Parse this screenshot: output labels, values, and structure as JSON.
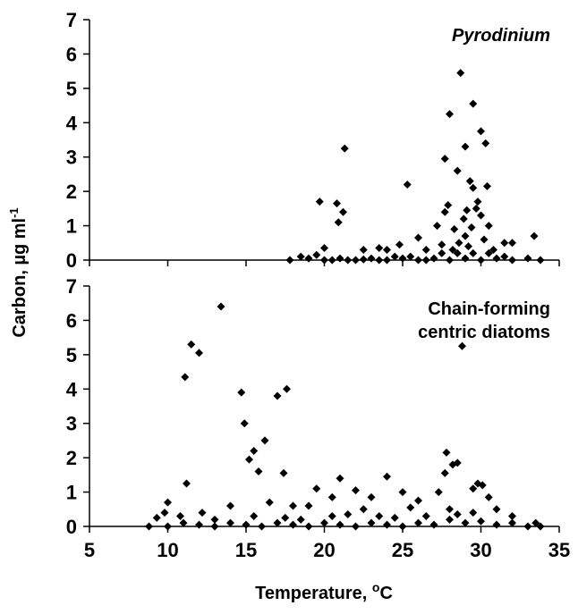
{
  "chart_data": [
    {
      "type": "scatter",
      "title": "Pyrodinium",
      "ylabel": "Carbon, µg ml",
      "ylabel_superscript": "-1",
      "color": "#000000",
      "xlim": [
        5,
        35
      ],
      "ylim": [
        0,
        7
      ],
      "yticks": [
        0,
        1,
        2,
        3,
        4,
        5,
        6,
        7
      ],
      "x": [
        28.7,
        29.5,
        28,
        30,
        30.3,
        29,
        21.3,
        27.7,
        28.5,
        29.3,
        25.3,
        30.4,
        29.5,
        19.7,
        20.8,
        21.2,
        20.9,
        27.9,
        27.7,
        29.8,
        29.7,
        30,
        29.1,
        28.9,
        27.2,
        29.4,
        30.5,
        28.3,
        26,
        33.4,
        31.5,
        32,
        24.8,
        23.5,
        22.5,
        20,
        29,
        30.2,
        28.6,
        27.5,
        26.5,
        24,
        19.5,
        18.5,
        17.8,
        19,
        20,
        21,
        22,
        23,
        24,
        25,
        26,
        27,
        28,
        29,
        30,
        31,
        32,
        33,
        33.8,
        20.5,
        21.5,
        22.5,
        23.5,
        24.5,
        25.5,
        26.5,
        27.5,
        28.5,
        29.5,
        30.5,
        31.5,
        28.2,
        29.2,
        30.8
      ],
      "values": [
        5.45,
        4.55,
        4.25,
        3.75,
        3.4,
        3.3,
        3.25,
        2.95,
        2.6,
        2.3,
        2.2,
        2.15,
        2.1,
        1.7,
        1.65,
        1.4,
        1.1,
        1.6,
        1.4,
        1.7,
        1.5,
        1.3,
        1.45,
        1.2,
        1.0,
        0.95,
        1.0,
        0.9,
        0.65,
        0.7,
        0.5,
        0.5,
        0.45,
        0.35,
        0.3,
        0.35,
        0.7,
        0.6,
        0.5,
        0.45,
        0.3,
        0.3,
        0.15,
        0.1,
        0,
        0.05,
        0,
        0.05,
        0,
        0.05,
        0,
        0.05,
        0,
        0.05,
        0,
        0.05,
        0,
        0.05,
        0,
        0.05,
        0,
        0,
        0,
        0.02,
        0,
        0.1,
        0.1,
        0,
        0.2,
        0.2,
        0.2,
        0.2,
        0.1,
        0.3,
        0.4,
        0.3
      ]
    },
    {
      "type": "scatter",
      "title": [
        "Chain-forming",
        "centric diatoms"
      ],
      "xlabel": "Temperature, ",
      "xlabel_superscript": "o",
      "xlabel_after": "C",
      "color": "#000000",
      "xlim": [
        5,
        35
      ],
      "xticks": [
        5,
        10,
        15,
        20,
        25,
        30,
        35
      ],
      "ylim": [
        0,
        7
      ],
      "yticks": [
        0,
        1,
        2,
        3,
        4,
        5,
        6,
        7
      ],
      "x": [
        13.4,
        11.5,
        12,
        28.8,
        11.1,
        17.6,
        17,
        14.7,
        14.9,
        16.2,
        15.5,
        27.8,
        15.2,
        28.2,
        28.5,
        11.2,
        17.4,
        27.7,
        21,
        24,
        15.8,
        29.8,
        30.1,
        29.5,
        19.5,
        22,
        25,
        27.3,
        20.5,
        23,
        10,
        26,
        30.5,
        18,
        16.5,
        14,
        9.8,
        10.8,
        9.3,
        12.2,
        13,
        19,
        22.5,
        25.5,
        28,
        31,
        32,
        33.5,
        8.8,
        10,
        11,
        12,
        13,
        14,
        15,
        16,
        17,
        18,
        19,
        20,
        21,
        22,
        23,
        24,
        25,
        26,
        27,
        28,
        29,
        30,
        31,
        32,
        33,
        33.8,
        20.5,
        21.5,
        23.5,
        24.5,
        26.5,
        28.5,
        29.5,
        15.5,
        17.5,
        18.5
      ],
      "values": [
        6.4,
        5.3,
        5.05,
        5.25,
        4.35,
        4.0,
        3.8,
        3.9,
        3.0,
        2.5,
        2.2,
        2.15,
        1.95,
        1.8,
        1.85,
        1.25,
        1.55,
        1.55,
        1.4,
        1.45,
        1.6,
        1.25,
        1.2,
        1.1,
        1.1,
        1.05,
        1.0,
        1.0,
        0.85,
        0.85,
        0.7,
        0.75,
        0.85,
        0.6,
        0.7,
        0.6,
        0.4,
        0.3,
        0.25,
        0.4,
        0.2,
        0.6,
        0.5,
        0.55,
        0.5,
        0.5,
        0.3,
        0.1,
        0,
        0,
        0.1,
        0.05,
        0,
        0.1,
        0.05,
        0,
        0.1,
        0.05,
        0,
        0.1,
        0.05,
        0,
        0.1,
        0.05,
        0,
        0.1,
        0.05,
        0.2,
        0.1,
        0.15,
        0.05,
        0.1,
        0,
        0,
        0.3,
        0.35,
        0.3,
        0.25,
        0.3,
        0.35,
        0.4,
        0.3,
        0.25,
        0.2
      ]
    }
  ]
}
